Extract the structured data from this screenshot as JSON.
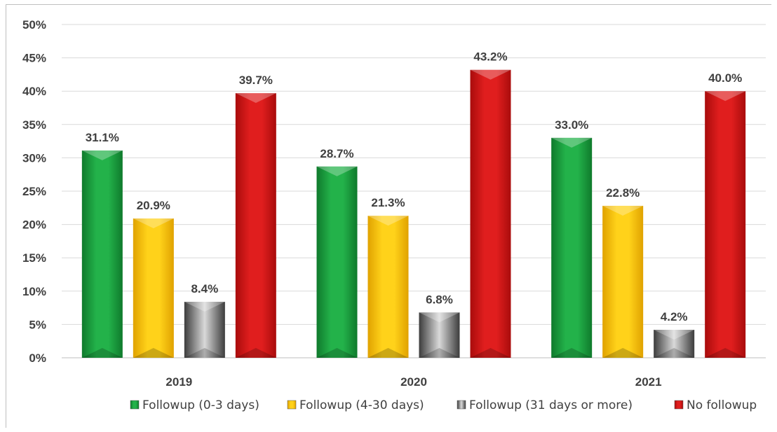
{
  "chart_data": {
    "type": "bar",
    "title": "",
    "xlabel": "",
    "ylabel": "",
    "categories": [
      "2019",
      "2020",
      "2021"
    ],
    "ylim": [
      0,
      50
    ],
    "yticks": [
      0,
      5,
      10,
      15,
      20,
      25,
      30,
      35,
      40,
      45,
      50
    ],
    "tick_suffix": "%",
    "grid": "horizontal",
    "legend_position": "bottom",
    "series": [
      {
        "name": "Followup (0-3 days)",
        "color": "#1a9e3e",
        "values": [
          31.1,
          28.7,
          33.0
        ],
        "labels": [
          "31.1%",
          "28.7%",
          "33.0%"
        ]
      },
      {
        "name": "Followup (4-30 days)",
        "color": "#ffc000",
        "values": [
          20.9,
          21.3,
          22.8
        ],
        "labels": [
          "20.9%",
          "21.3%",
          "22.8%"
        ]
      },
      {
        "name": "Followup (31 days or more)",
        "color": "#7f7f7f",
        "values": [
          8.4,
          6.8,
          4.2
        ],
        "labels": [
          "8.4%",
          "6.8%",
          "4.2%"
        ]
      },
      {
        "name": "No followup",
        "color": "#d11616",
        "values": [
          39.7,
          43.2,
          40.0
        ],
        "labels": [
          "39.7%",
          "43.2%",
          "40.0%"
        ]
      }
    ]
  }
}
